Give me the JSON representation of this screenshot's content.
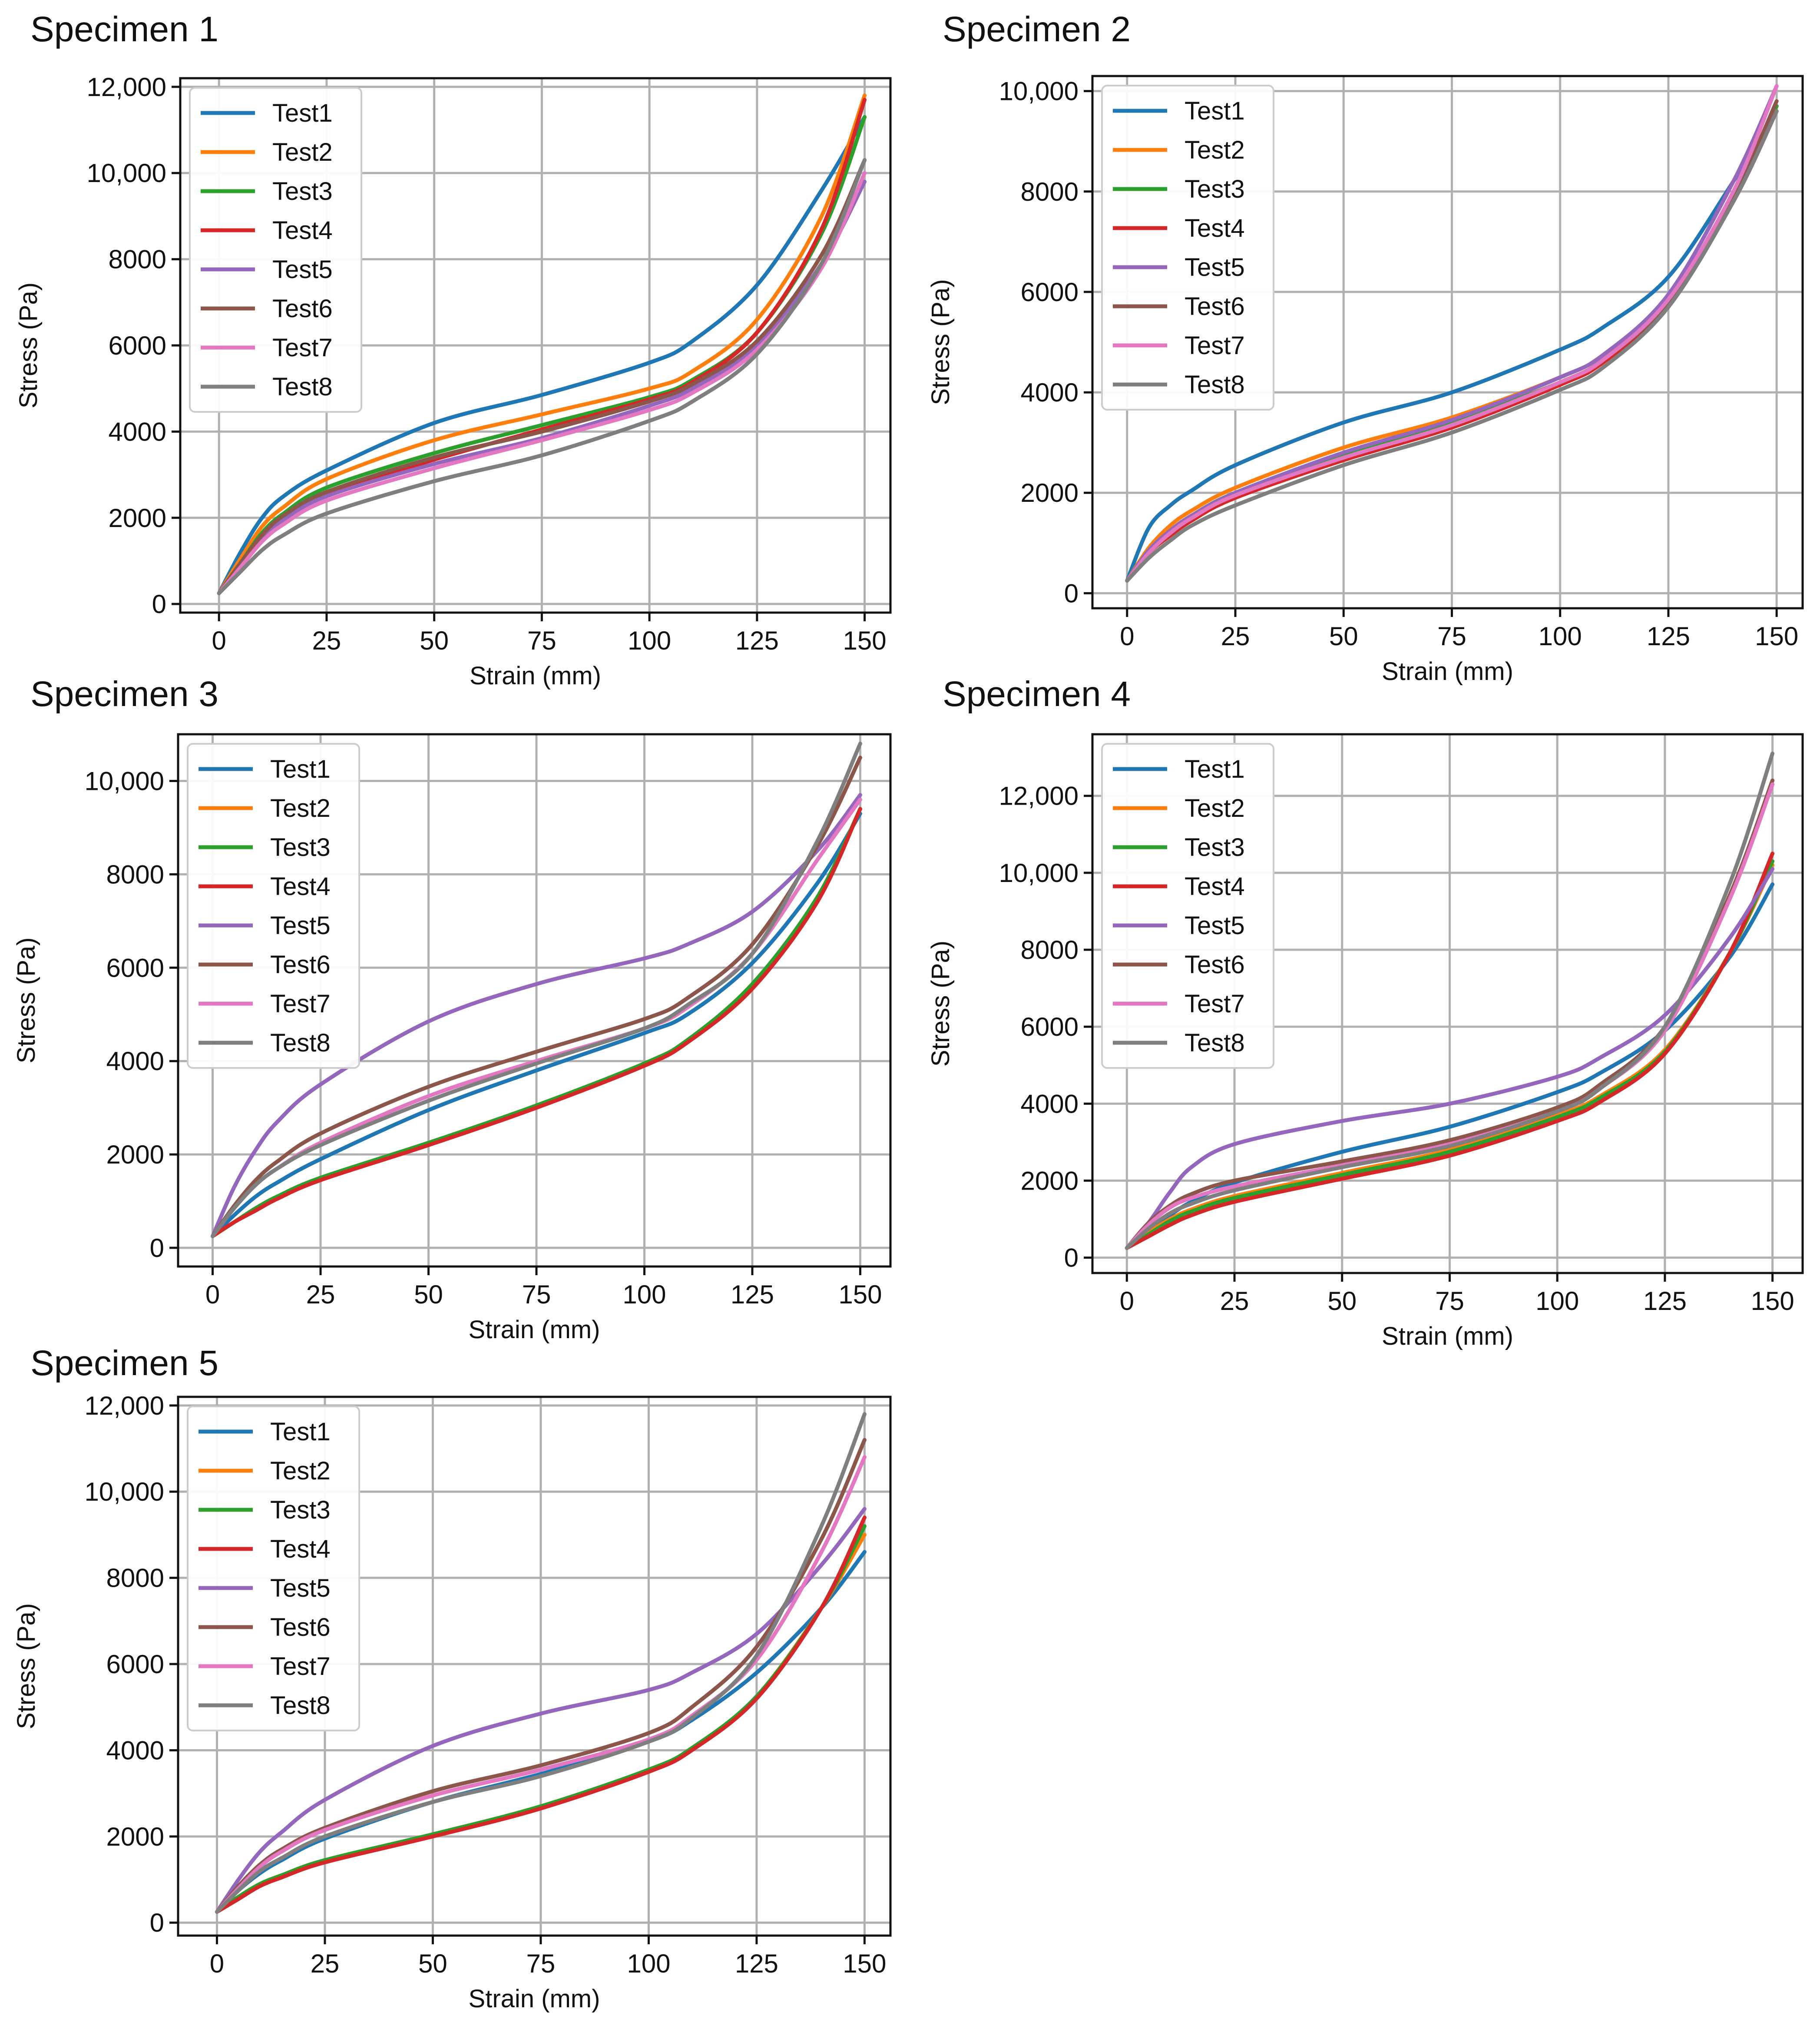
{
  "figure": {
    "description_free": true
  },
  "series_names": [
    "Test1",
    "Test2",
    "Test3",
    "Test4",
    "Test5",
    "Test6",
    "Test7",
    "Test8"
  ],
  "colors": {
    "Test1": "#1f77b4",
    "Test2": "#ff7f0e",
    "Test3": "#2ca02c",
    "Test4": "#d62728",
    "Test5": "#9467bd",
    "Test6": "#8c564b",
    "Test7": "#e377c2",
    "Test8": "#7f7f7f"
  },
  "chart_data": [
    {
      "type": "line",
      "title": "Specimen 1",
      "xlabel": "Strain (mm)",
      "ylabel": "Stress (Pa)",
      "xlim": [
        -9,
        156
      ],
      "ylim": [
        -200,
        12200
      ],
      "xticks": [
        0,
        25,
        50,
        75,
        100,
        125,
        150
      ],
      "xtick_labels": [
        "0",
        "25",
        "50",
        "75",
        "100",
        "125",
        "150"
      ],
      "yticks": [
        0,
        2000,
        4000,
        6000,
        8000,
        10000,
        12000
      ],
      "ytick_labels": [
        "0",
        "2000",
        "4000",
        "6000",
        "8000",
        "10,000",
        "12,000"
      ],
      "grid": true,
      "legend": "top-left",
      "x": [
        0,
        5,
        10,
        15,
        25,
        50,
        75,
        100,
        110,
        125,
        140,
        150
      ],
      "series": [
        {
          "name": "Test1",
          "values": [
            250,
            1200,
            2000,
            2500,
            3100,
            4200,
            4850,
            5600,
            6100,
            7400,
            9600,
            11300
          ]
        },
        {
          "name": "Test2",
          "values": [
            250,
            1050,
            1800,
            2250,
            2900,
            3800,
            4400,
            5000,
            5400,
            6600,
            9000,
            11800
          ]
        },
        {
          "name": "Test3",
          "values": [
            250,
            950,
            1650,
            2100,
            2700,
            3500,
            4150,
            4800,
            5200,
            6300,
            8600,
            11300
          ]
        },
        {
          "name": "Test4",
          "values": [
            250,
            900,
            1550,
            2000,
            2550,
            3350,
            4050,
            4750,
            5150,
            6300,
            8700,
            11700
          ]
        },
        {
          "name": "Test5",
          "values": [
            250,
            900,
            1550,
            1950,
            2500,
            3250,
            3850,
            4600,
            5000,
            6000,
            7900,
            9800
          ]
        },
        {
          "name": "Test6",
          "values": [
            250,
            950,
            1600,
            2050,
            2600,
            3400,
            4000,
            4700,
            5100,
            6100,
            8100,
            10300
          ]
        },
        {
          "name": "Test7",
          "values": [
            250,
            850,
            1450,
            1850,
            2400,
            3150,
            3800,
            4500,
            4900,
            5900,
            7800,
            10000
          ]
        },
        {
          "name": "Test8",
          "values": [
            250,
            750,
            1250,
            1600,
            2100,
            2850,
            3450,
            4250,
            4700,
            5800,
            7900,
            10300
          ]
        }
      ]
    },
    {
      "type": "line",
      "title": "Specimen 2",
      "xlabel": "Strain (mm)",
      "ylabel": "Stress (Pa)",
      "xlim": [
        -8,
        156
      ],
      "ylim": [
        -300,
        10300
      ],
      "xticks": [
        0,
        25,
        50,
        75,
        100,
        125,
        150
      ],
      "xtick_labels": [
        "0",
        "25",
        "50",
        "75",
        "100",
        "125",
        "150"
      ],
      "yticks": [
        0,
        2000,
        4000,
        6000,
        8000,
        10000
      ],
      "ytick_labels": [
        "0",
        "2000",
        "4000",
        "6000",
        "8000",
        "10,000"
      ],
      "grid": true,
      "legend": "top-left",
      "x": [
        0,
        5,
        10,
        15,
        25,
        50,
        75,
        100,
        110,
        125,
        140,
        150
      ],
      "series": [
        {
          "name": "Test1",
          "values": [
            250,
            1300,
            1750,
            2050,
            2550,
            3400,
            4000,
            4850,
            5300,
            6300,
            8200,
            9600
          ]
        },
        {
          "name": "Test2",
          "values": [
            250,
            900,
            1350,
            1650,
            2100,
            2900,
            3500,
            4300,
            4750,
            5900,
            7900,
            9700
          ]
        },
        {
          "name": "Test3",
          "values": [
            250,
            850,
            1250,
            1550,
            2000,
            2750,
            3400,
            4200,
            4650,
            5800,
            7900,
            9700
          ]
        },
        {
          "name": "Test4",
          "values": [
            250,
            800,
            1150,
            1450,
            1900,
            2650,
            3300,
            4150,
            4600,
            5750,
            7800,
            9600
          ]
        },
        {
          "name": "Test5",
          "values": [
            250,
            850,
            1250,
            1550,
            2000,
            2800,
            3450,
            4300,
            4750,
            5950,
            8200,
            10100
          ]
        },
        {
          "name": "Test6",
          "values": [
            250,
            800,
            1200,
            1500,
            1950,
            2700,
            3350,
            4200,
            4650,
            5800,
            7900,
            9800
          ]
        },
        {
          "name": "Test7",
          "values": [
            250,
            800,
            1200,
            1500,
            1950,
            2700,
            3350,
            4200,
            4650,
            5850,
            8000,
            10100
          ]
        },
        {
          "name": "Test8",
          "values": [
            250,
            700,
            1050,
            1350,
            1750,
            2550,
            3200,
            4050,
            4500,
            5700,
            7800,
            9600
          ]
        }
      ]
    },
    {
      "type": "line",
      "title": "Specimen 3",
      "xlabel": "Strain (mm)",
      "ylabel": "Stress (Pa)",
      "xlim": [
        -8,
        157
      ],
      "ylim": [
        -400,
        11000
      ],
      "xticks": [
        0,
        25,
        50,
        75,
        100,
        125,
        150
      ],
      "xtick_labels": [
        "0",
        "25",
        "50",
        "75",
        "100",
        "125",
        "150"
      ],
      "yticks": [
        0,
        2000,
        4000,
        6000,
        8000,
        10000
      ],
      "ytick_labels": [
        "0",
        "2000",
        "4000",
        "6000",
        "8000",
        "10,000"
      ],
      "grid": true,
      "legend": "top-left",
      "x": [
        0,
        5,
        10,
        15,
        25,
        50,
        75,
        100,
        110,
        125,
        140,
        150
      ],
      "series": [
        {
          "name": "Test1",
          "values": [
            250,
            700,
            1100,
            1400,
            1900,
            2950,
            3800,
            4600,
            5000,
            6100,
            7800,
            9300
          ]
        },
        {
          "name": "Test2",
          "values": [
            250,
            550,
            850,
            1100,
            1500,
            2250,
            3050,
            3950,
            4450,
            5650,
            7500,
            9400
          ]
        },
        {
          "name": "Test3",
          "values": [
            250,
            550,
            850,
            1100,
            1500,
            2250,
            3050,
            3950,
            4450,
            5650,
            7500,
            9400
          ]
        },
        {
          "name": "Test4",
          "values": [
            250,
            550,
            800,
            1050,
            1450,
            2200,
            3000,
            3900,
            4400,
            5550,
            7400,
            9400
          ]
        },
        {
          "name": "Test5",
          "values": [
            250,
            1300,
            2100,
            2700,
            3500,
            4850,
            5650,
            6200,
            6500,
            7200,
            8500,
            9700
          ]
        },
        {
          "name": "Test6",
          "values": [
            250,
            900,
            1450,
            1850,
            2450,
            3450,
            4200,
            4900,
            5350,
            6500,
            8600,
            10500
          ]
        },
        {
          "name": "Test7",
          "values": [
            250,
            850,
            1350,
            1700,
            2250,
            3250,
            4000,
            4700,
            5150,
            6300,
            8300,
            9600
          ]
        },
        {
          "name": "Test8",
          "values": [
            250,
            850,
            1350,
            1700,
            2200,
            3150,
            3950,
            4700,
            5200,
            6300,
            8700,
            10800
          ]
        }
      ]
    },
    {
      "type": "line",
      "title": "Specimen 4",
      "xlabel": "Strain (mm)",
      "ylabel": "Stress (Pa)",
      "xlim": [
        -8,
        157
      ],
      "ylim": [
        -400,
        13600
      ],
      "xticks": [
        0,
        25,
        50,
        75,
        100,
        125,
        150
      ],
      "xtick_labels": [
        "0",
        "25",
        "50",
        "75",
        "100",
        "125",
        "150"
      ],
      "yticks": [
        0,
        2000,
        4000,
        6000,
        8000,
        10000,
        12000
      ],
      "ytick_labels": [
        "0",
        "2000",
        "4000",
        "6000",
        "8000",
        "10,000",
        "12,000"
      ],
      "grid": true,
      "legend": "top-left",
      "x": [
        0,
        5,
        10,
        15,
        25,
        50,
        75,
        100,
        110,
        125,
        140,
        150
      ],
      "series": [
        {
          "name": "Test1",
          "values": [
            250,
            700,
            1100,
            1450,
            1950,
            2750,
            3400,
            4300,
            4800,
            5900,
            7800,
            9700
          ]
        },
        {
          "name": "Test2",
          "values": [
            250,
            650,
            1000,
            1250,
            1600,
            2200,
            2800,
            3700,
            4200,
            5400,
            7900,
            10200
          ]
        },
        {
          "name": "Test3",
          "values": [
            250,
            600,
            950,
            1200,
            1550,
            2150,
            2750,
            3650,
            4150,
            5350,
            7900,
            10300
          ]
        },
        {
          "name": "Test4",
          "values": [
            250,
            550,
            850,
            1100,
            1450,
            2050,
            2650,
            3550,
            4050,
            5300,
            7900,
            10500
          ]
        },
        {
          "name": "Test5",
          "values": [
            250,
            900,
            1700,
            2350,
            2950,
            3550,
            4000,
            4700,
            5200,
            6300,
            8300,
            10100
          ]
        },
        {
          "name": "Test6",
          "values": [
            250,
            900,
            1350,
            1650,
            2000,
            2500,
            3050,
            3900,
            4500,
            6000,
            9400,
            12400
          ]
        },
        {
          "name": "Test7",
          "values": [
            250,
            850,
            1300,
            1550,
            1850,
            2400,
            2950,
            3800,
            4400,
            5900,
            9300,
            12300
          ]
        },
        {
          "name": "Test8",
          "values": [
            250,
            750,
            1150,
            1400,
            1750,
            2350,
            2900,
            3800,
            4400,
            6000,
            9700,
            13100
          ]
        }
      ]
    },
    {
      "type": "line",
      "title": "Specimen 5",
      "xlabel": "Strain (mm)",
      "ylabel": "Stress (Pa)",
      "xlim": [
        -9,
        156
      ],
      "ylim": [
        -300,
        12200
      ],
      "xticks": [
        0,
        25,
        50,
        75,
        100,
        125,
        150
      ],
      "xtick_labels": [
        "0",
        "25",
        "50",
        "75",
        "100",
        "125",
        "150"
      ],
      "yticks": [
        0,
        2000,
        4000,
        6000,
        8000,
        10000,
        12000
      ],
      "ytick_labels": [
        "0",
        "2000",
        "4000",
        "6000",
        "8000",
        "10,000",
        "12,000"
      ],
      "grid": true,
      "legend": "top-left",
      "x": [
        0,
        5,
        10,
        15,
        25,
        50,
        75,
        100,
        110,
        125,
        140,
        150
      ],
      "series": [
        {
          "name": "Test1",
          "values": [
            250,
            750,
            1150,
            1450,
            1950,
            2800,
            3450,
            4200,
            4700,
            5800,
            7300,
            8600
          ]
        },
        {
          "name": "Test2",
          "values": [
            250,
            600,
            900,
            1100,
            1450,
            2050,
            2700,
            3550,
            4050,
            5250,
            7300,
            9000
          ]
        },
        {
          "name": "Test3",
          "values": [
            250,
            600,
            900,
            1100,
            1450,
            2050,
            2700,
            3550,
            4050,
            5250,
            7300,
            9200
          ]
        },
        {
          "name": "Test4",
          "values": [
            250,
            550,
            850,
            1050,
            1400,
            2000,
            2650,
            3500,
            4000,
            5200,
            7300,
            9400
          ]
        },
        {
          "name": "Test5",
          "values": [
            250,
            1000,
            1650,
            2100,
            2850,
            4100,
            4850,
            5400,
            5800,
            6700,
            8300,
            9600
          ]
        },
        {
          "name": "Test6",
          "values": [
            250,
            850,
            1350,
            1700,
            2200,
            3050,
            3650,
            4400,
            5000,
            6400,
            8900,
            11200
          ]
        },
        {
          "name": "Test7",
          "values": [
            250,
            800,
            1300,
            1650,
            2150,
            2950,
            3550,
            4250,
            4800,
            6100,
            8600,
            10800
          ]
        },
        {
          "name": "Test8",
          "values": [
            250,
            750,
            1200,
            1500,
            2000,
            2800,
            3400,
            4200,
            4750,
            6200,
            9200,
            11800
          ]
        }
      ]
    }
  ]
}
